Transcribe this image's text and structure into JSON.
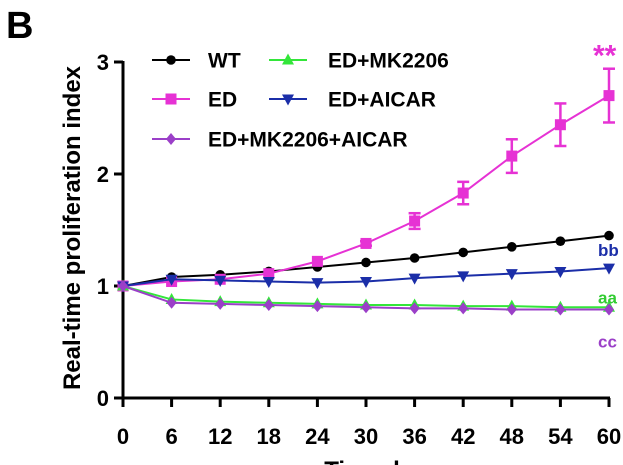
{
  "panel_label": "B",
  "chart_data": {
    "type": "line",
    "title": "",
    "xlabel": "Time, h",
    "ylabel": "Real-time proliferation index",
    "x": [
      0,
      6,
      12,
      18,
      24,
      30,
      36,
      42,
      48,
      54,
      60
    ],
    "x_ticks": [
      "0",
      "6",
      "12",
      "18",
      "24",
      "30",
      "36",
      "42",
      "48",
      "54",
      "60"
    ],
    "y_ticks": [
      "0",
      "1",
      "2",
      "3"
    ],
    "xlim": [
      0,
      60
    ],
    "ylim": [
      0,
      3
    ],
    "grid": false,
    "legend_position": "top-left",
    "series": [
      {
        "name": "WT",
        "color": "#000000",
        "marker": "circle",
        "values": [
          1.0,
          1.08,
          1.1,
          1.13,
          1.17,
          1.21,
          1.25,
          1.3,
          1.35,
          1.4,
          1.45
        ],
        "errors": [
          0,
          0,
          0,
          0,
          0,
          0,
          0,
          0,
          0,
          0,
          0
        ]
      },
      {
        "name": "ED",
        "color": "#e632d4",
        "marker": "square",
        "values": [
          1.0,
          1.04,
          1.06,
          1.11,
          1.22,
          1.38,
          1.58,
          1.83,
          2.16,
          2.44,
          2.7
        ],
        "errors": [
          0,
          0,
          0,
          0,
          0,
          0.02,
          0.07,
          0.1,
          0.15,
          0.19,
          0.24
        ]
      },
      {
        "name": "ED+MK2206",
        "color": "#33e63a",
        "marker": "triangle-up",
        "values": [
          1.0,
          0.88,
          0.86,
          0.85,
          0.84,
          0.83,
          0.83,
          0.82,
          0.82,
          0.81,
          0.81
        ],
        "errors": [
          0,
          0,
          0,
          0,
          0,
          0,
          0,
          0,
          0,
          0,
          0
        ]
      },
      {
        "name": "ED+AICAR",
        "color": "#1b2ea8",
        "marker": "triangle-down",
        "values": [
          1.0,
          1.06,
          1.05,
          1.04,
          1.03,
          1.04,
          1.07,
          1.09,
          1.11,
          1.13,
          1.16
        ],
        "errors": [
          0,
          0,
          0,
          0,
          0,
          0,
          0,
          0,
          0,
          0,
          0
        ]
      },
      {
        "name": "ED+MK2206+AICAR",
        "color": "#9b3fc8",
        "marker": "diamond",
        "values": [
          1.0,
          0.85,
          0.84,
          0.83,
          0.82,
          0.81,
          0.8,
          0.8,
          0.79,
          0.79,
          0.79
        ],
        "errors": [
          0,
          0,
          0,
          0,
          0,
          0,
          0,
          0,
          0,
          0,
          0
        ]
      }
    ],
    "annotations": [
      {
        "text": "**",
        "series": "ED",
        "color": "#e632d4"
      },
      {
        "text": "bb",
        "series": "ED+AICAR",
        "color": "#1b2ea8"
      },
      {
        "text": "aa",
        "series": "ED+MK2206",
        "color": "#33cc33"
      },
      {
        "text": "cc",
        "series": "ED+MK2206+AICAR",
        "color": "#9b3fc8"
      }
    ]
  }
}
